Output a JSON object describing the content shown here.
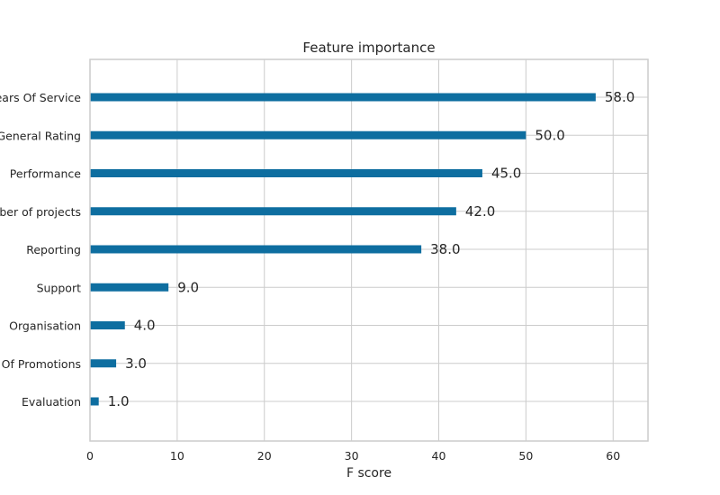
{
  "chart_data": {
    "type": "bar",
    "orientation": "horizontal",
    "title": "Feature importance",
    "xlabel": "F score",
    "ylabel": "",
    "xlim": [
      0,
      64
    ],
    "xticks": [
      0,
      10,
      20,
      30,
      40,
      50,
      60
    ],
    "grid": true,
    "bar_color": "#0e6ea0",
    "categories": [
      "Years Of Service",
      "General Rating",
      "Performance",
      "Number of projects",
      "Reporting",
      "Support",
      "Organisation",
      "No Of Promotions",
      "Evaluation"
    ],
    "values": [
      58.0,
      50.0,
      45.0,
      42.0,
      38.0,
      9.0,
      4.0,
      3.0,
      1.0
    ],
    "data_labels": [
      "58.0",
      "50.0",
      "45.0",
      "42.0",
      "38.0",
      "9.0",
      "4.0",
      "3.0",
      "1.0"
    ]
  }
}
